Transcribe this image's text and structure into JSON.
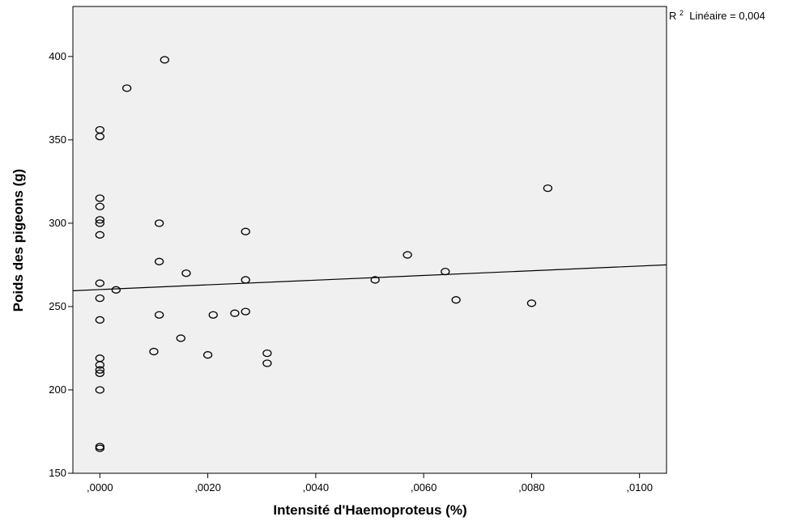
{
  "chart_data": {
    "type": "scatter",
    "title": "",
    "xlabel": "Intensité d'Haemoproteus (%)",
    "ylabel": "Poids des pigeons (g)",
    "xlim": [
      -0.0005,
      0.0105
    ],
    "ylim": [
      150,
      430
    ],
    "x_ticks": [
      {
        "value": 0.0,
        "label": ",0000"
      },
      {
        "value": 0.002,
        "label": ",0020"
      },
      {
        "value": 0.004,
        "label": ",0040"
      },
      {
        "value": 0.006,
        "label": ",0060"
      },
      {
        "value": 0.008,
        "label": ",0080"
      },
      {
        "value": 0.01,
        "label": ",0100"
      }
    ],
    "y_ticks": [
      {
        "value": 150,
        "label": "150"
      },
      {
        "value": 200,
        "label": "200"
      },
      {
        "value": 250,
        "label": "250"
      },
      {
        "value": 300,
        "label": "300"
      },
      {
        "value": 350,
        "label": "350"
      },
      {
        "value": 400,
        "label": "400"
      }
    ],
    "grid": false,
    "plot_background": "#f0f0f0",
    "marker_color": "#000000",
    "line_color": "#000000",
    "points": [
      {
        "x": 0.0,
        "y": 356
      },
      {
        "x": 0.0,
        "y": 352
      },
      {
        "x": 0.0,
        "y": 315
      },
      {
        "x": 0.0,
        "y": 310
      },
      {
        "x": 0.0,
        "y": 302
      },
      {
        "x": 0.0,
        "y": 300
      },
      {
        "x": 0.0,
        "y": 293
      },
      {
        "x": 0.0,
        "y": 264
      },
      {
        "x": 0.0,
        "y": 255
      },
      {
        "x": 0.0,
        "y": 242
      },
      {
        "x": 0.0,
        "y": 219
      },
      {
        "x": 0.0,
        "y": 215
      },
      {
        "x": 0.0,
        "y": 212
      },
      {
        "x": 0.0,
        "y": 210
      },
      {
        "x": 0.0,
        "y": 200
      },
      {
        "x": 0.0,
        "y": 166
      },
      {
        "x": 0.0,
        "y": 165
      },
      {
        "x": 0.0003,
        "y": 260
      },
      {
        "x": 0.0005,
        "y": 381
      },
      {
        "x": 0.001,
        "y": 223
      },
      {
        "x": 0.0011,
        "y": 300
      },
      {
        "x": 0.0011,
        "y": 277
      },
      {
        "x": 0.0011,
        "y": 245
      },
      {
        "x": 0.0012,
        "y": 398
      },
      {
        "x": 0.0015,
        "y": 231
      },
      {
        "x": 0.0016,
        "y": 270
      },
      {
        "x": 0.002,
        "y": 221
      },
      {
        "x": 0.0021,
        "y": 245
      },
      {
        "x": 0.0025,
        "y": 246
      },
      {
        "x": 0.0027,
        "y": 295
      },
      {
        "x": 0.0027,
        "y": 266
      },
      {
        "x": 0.0027,
        "y": 247
      },
      {
        "x": 0.0031,
        "y": 222
      },
      {
        "x": 0.0031,
        "y": 216
      },
      {
        "x": 0.0051,
        "y": 266
      },
      {
        "x": 0.0057,
        "y": 281
      },
      {
        "x": 0.0064,
        "y": 271
      },
      {
        "x": 0.0066,
        "y": 254
      },
      {
        "x": 0.008,
        "y": 252
      },
      {
        "x": 0.0083,
        "y": 321
      }
    ],
    "fit_line": {
      "type": "linear",
      "x": [
        -0.0005,
        0.0105
      ],
      "y": [
        259.5,
        275
      ],
      "annotation": {
        "r_label": "R",
        "superscript": "2",
        "text": " Linéaire = 0,004"
      }
    }
  }
}
